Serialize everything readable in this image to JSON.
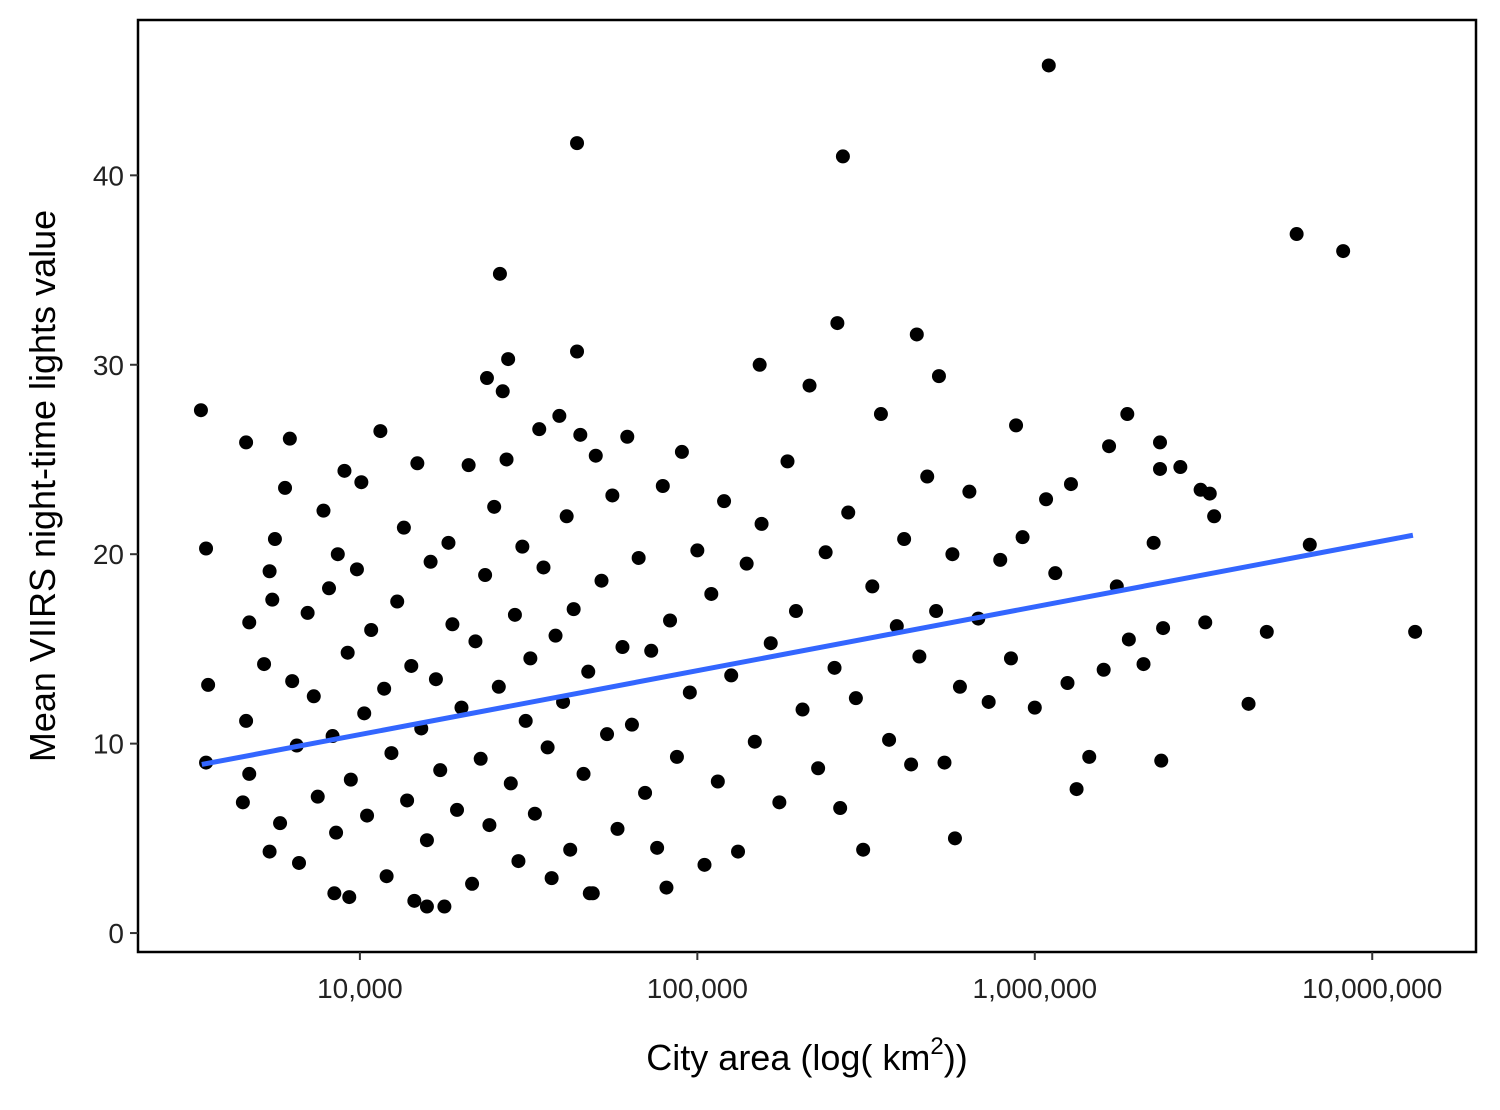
{
  "chart_data": {
    "type": "scatter",
    "x_label": [
      "City area (log( km",
      "2",
      "))"
    ],
    "y_label": "Mean VIIRS night-time lights value",
    "x_log": true,
    "xlim": [
      2200,
      20300000
    ],
    "ylim": [
      -1,
      48.2
    ],
    "xticks": [
      {
        "value": 10000,
        "label": "10,000"
      },
      {
        "value": 100000,
        "label": "100,000"
      },
      {
        "value": 1000000,
        "label": "1,000,000"
      },
      {
        "value": 10000000,
        "label": "10,000,000"
      }
    ],
    "yticks": [
      0,
      10,
      20,
      30,
      40
    ],
    "grid": false,
    "series": [
      {
        "color": "#000000",
        "x": [
          3380,
          3500,
          3550,
          3500,
          4600,
          4700,
          4600,
          4500,
          4700,
          5200,
          5400,
          5600,
          5500,
          5400,
          5800,
          6000,
          6200,
          6300,
          6500,
          6600,
          7000,
          7300,
          7500,
          7800,
          8100,
          8300,
          8500,
          8600,
          9000,
          9200,
          9400,
          9300,
          9800,
          10100,
          10300,
          10500,
          10800,
          11500,
          11800,
          12000,
          12400,
          12900,
          13500,
          13800,
          14200,
          14500,
          14800,
          15200,
          15800,
          16200,
          16800,
          17300,
          17800,
          18300,
          18800,
          19400,
          20000,
          21000,
          21500,
          22000,
          22800,
          23500,
          24200,
          25000,
          25800,
          26500,
          27200,
          28000,
          28800,
          29500,
          30300,
          31000,
          32000,
          33000,
          34000,
          35000,
          36000,
          37000,
          38000,
          39000,
          40000,
          41000,
          42000,
          43000,
          45000,
          46000,
          47500,
          49000,
          50000,
          52000,
          54000,
          56000,
          58000,
          60000,
          62000,
          64000,
          67000,
          70000,
          73000,
          76000,
          79000,
          83000,
          87000,
          90000,
          95000,
          100000,
          105000,
          110000,
          115000,
          120000,
          126000,
          132000,
          140000,
          148000,
          155000,
          165000,
          175000,
          185000,
          196000,
          205000,
          215000,
          228000,
          240000,
          255000,
          265000,
          280000,
          295000,
          310000,
          330000,
          350000,
          370000,
          390000,
          410000,
          430000,
          455000,
          480000,
          510000,
          540000,
          570000,
          600000,
          640000,
          680000,
          730000,
          790000,
          850000,
          920000,
          1000000,
          1150000,
          1250000,
          1330000,
          1450000,
          1600000,
          1750000,
          1900000,
          2100000,
          2250000,
          2350000,
          2400000,
          2700000,
          3100000,
          3200000,
          3400000,
          1100000,
          44000,
          270000,
          5970000,
          8200000,
          26000,
          260000,
          13400000,
          6530000,
          4870000,
          4300000,
          2370000,
          580000,
          81000,
          15800,
          8400,
          48000,
          1880000,
          880000,
          447000,
          520000,
          153000,
          44000,
          27500,
          23800,
          3300000,
          2350000,
          1080000,
          1280000,
          1660000
        ],
        "values": [
          27.6,
          20.3,
          13.1,
          9.0,
          25.9,
          16.4,
          11.2,
          6.9,
          8.4,
          14.2,
          19.1,
          20.8,
          17.6,
          4.3,
          5.8,
          23.5,
          26.1,
          13.3,
          9.9,
          3.7,
          16.9,
          12.5,
          7.2,
          22.3,
          18.2,
          10.4,
          5.3,
          20.0,
          24.4,
          14.8,
          8.1,
          1.9,
          19.2,
          23.8,
          11.6,
          6.2,
          16.0,
          26.5,
          12.9,
          3.0,
          9.5,
          17.5,
          21.4,
          7.0,
          14.1,
          1.7,
          24.8,
          10.8,
          4.9,
          19.6,
          13.4,
          8.6,
          1.4,
          20.6,
          16.3,
          6.5,
          11.9,
          24.7,
          2.6,
          15.4,
          9.2,
          18.9,
          5.7,
          22.5,
          13.0,
          28.6,
          25.0,
          7.9,
          16.8,
          3.8,
          20.4,
          11.2,
          14.5,
          6.3,
          26.6,
          19.3,
          9.8,
          2.9,
          15.7,
          27.3,
          12.2,
          22.0,
          4.4,
          17.1,
          26.3,
          8.4,
          13.8,
          2.1,
          25.2,
          18.6,
          10.5,
          23.1,
          5.5,
          15.1,
          26.2,
          11.0,
          19.8,
          7.4,
          14.9,
          4.5,
          23.6,
          16.5,
          9.3,
          25.4,
          12.7,
          20.2,
          3.6,
          17.9,
          8.0,
          22.8,
          13.6,
          4.3,
          19.5,
          10.1,
          21.6,
          15.3,
          6.9,
          24.9,
          17.0,
          11.8,
          28.9,
          8.7,
          20.1,
          14.0,
          6.6,
          22.2,
          12.4,
          4.4,
          18.3,
          27.4,
          10.2,
          16.2,
          20.8,
          8.9,
          14.6,
          24.1,
          17.0,
          9.0,
          20.0,
          13.0,
          23.3,
          16.6,
          12.2,
          19.7,
          14.5,
          20.9,
          11.9,
          19.0,
          13.2,
          7.6,
          9.3,
          13.9,
          18.3,
          15.5,
          14.2,
          20.6,
          24.5,
          16.1,
          24.6,
          23.4,
          16.4,
          22.0,
          45.8,
          41.7,
          41.0,
          36.9,
          36.0,
          34.8,
          32.2,
          15.9,
          20.5,
          15.9,
          12.1,
          9.1,
          5.0,
          2.4,
          1.4,
          2.1,
          2.1,
          27.4,
          26.8,
          31.6,
          29.4,
          30.0,
          30.7,
          30.3,
          29.3,
          23.2,
          25.9,
          22.9,
          23.7,
          25.7
        ]
      }
    ],
    "trend": {
      "color": "#3366ff",
      "x": [
        3400,
        13200000
      ],
      "values": [
        8.9,
        21.0
      ]
    }
  }
}
